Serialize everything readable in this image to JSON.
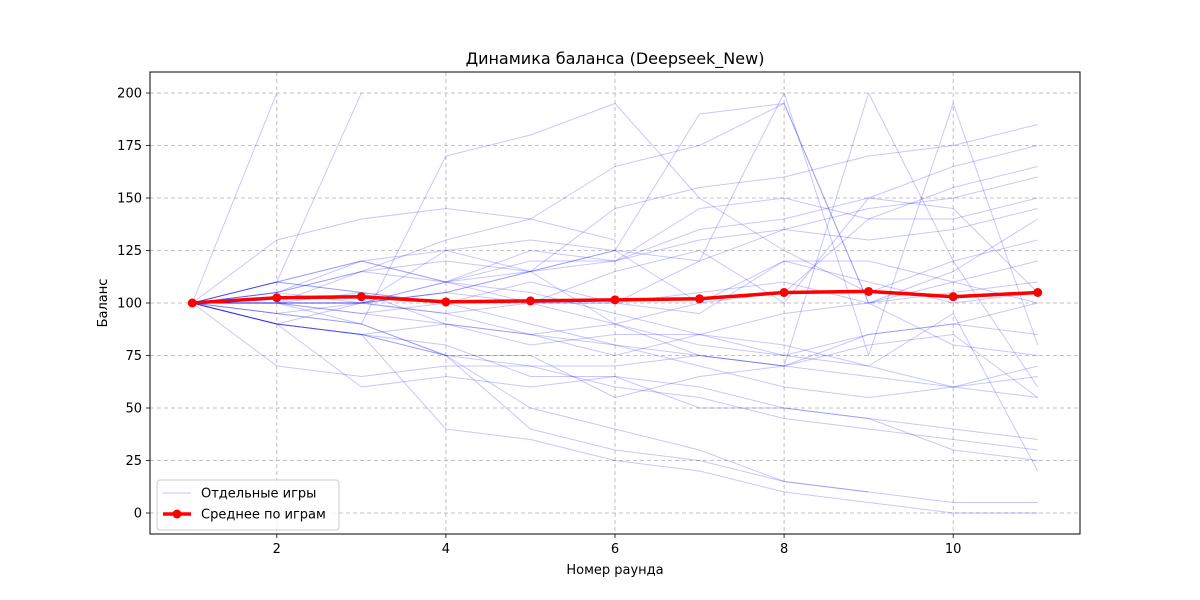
{
  "chart_data": {
    "type": "line",
    "title": "Динамика баланса (Deepseek_New)",
    "xlabel": "Номер раунда",
    "ylabel": "Баланс",
    "xlim": [
      0.5,
      11.5
    ],
    "ylim": [
      -10,
      210
    ],
    "xticks": [
      2,
      4,
      6,
      8,
      10
    ],
    "yticks": [
      0,
      25,
      50,
      75,
      100,
      125,
      150,
      175,
      200
    ],
    "grid": true,
    "legend_position": "lower-left",
    "legend": {
      "individual_label": "Отдельные игры",
      "mean_label": "Среднее по играм"
    },
    "colors": {
      "individual": "#0000ff",
      "mean": "#ff0000",
      "grid": "#b0b0b0"
    },
    "individual_series": [
      {
        "x": [
          1,
          2
        ],
        "y": [
          100,
          200
        ]
      },
      {
        "x": [
          1,
          2,
          3
        ],
        "y": [
          100,
          110,
          200
        ]
      },
      {
        "x": [
          1,
          2,
          3,
          4,
          5,
          6
        ],
        "y": [
          100,
          130,
          140,
          145,
          140,
          130
        ]
      },
      {
        "x": [
          1,
          2,
          3,
          4,
          5,
          6,
          7,
          8,
          9,
          10,
          11
        ],
        "y": [
          100,
          110,
          120,
          110,
          120,
          120,
          130,
          135,
          145,
          150,
          160
        ]
      },
      {
        "x": [
          1,
          2,
          3,
          4,
          5,
          6,
          7,
          8,
          9,
          10,
          11
        ],
        "y": [
          100,
          105,
          115,
          120,
          115,
          120,
          135,
          140,
          150,
          165,
          175
        ]
      },
      {
        "x": [
          1,
          2,
          3,
          4,
          5,
          6,
          7,
          8,
          9,
          10,
          11
        ],
        "y": [
          100,
          90,
          100,
          105,
          115,
          145,
          155,
          160,
          170,
          175,
          185
        ]
      },
      {
        "x": [
          1,
          2,
          3,
          4,
          5,
          6,
          7,
          8,
          9,
          10,
          11
        ],
        "y": [
          100,
          105,
          100,
          105,
          100,
          100,
          120,
          135,
          130,
          135,
          145
        ]
      },
      {
        "x": [
          1,
          2,
          3,
          4,
          5,
          6,
          7,
          8,
          9,
          10,
          11
        ],
        "y": [
          100,
          110,
          105,
          90,
          85,
          90,
          100,
          120,
          120,
          110,
          100
        ]
      },
      {
        "x": [
          1,
          2,
          3,
          4,
          5,
          6,
          7,
          8,
          9,
          10,
          11
        ],
        "y": [
          100,
          90,
          85,
          90,
          85,
          75,
          85,
          75,
          85,
          90,
          100
        ]
      },
      {
        "x": [
          1,
          2,
          3,
          4,
          5,
          6,
          7,
          8,
          9,
          10,
          11
        ],
        "y": [
          100,
          90,
          85,
          75,
          70,
          60,
          55,
          45,
          40,
          35,
          30
        ]
      },
      {
        "x": [
          1,
          2,
          3,
          4,
          5,
          6,
          7,
          8,
          9,
          10,
          11
        ],
        "y": [
          100,
          105,
          115,
          110,
          105,
          95,
          85,
          80,
          70,
          60,
          55
        ]
      },
      {
        "x": [
          1,
          2,
          3,
          4,
          5,
          6,
          7,
          8,
          9,
          10,
          11
        ],
        "y": [
          100,
          110,
          120,
          110,
          100,
          90,
          75,
          70,
          85,
          90,
          85
        ]
      },
      {
        "x": [
          1,
          2,
          3,
          4,
          5,
          6,
          7,
          8,
          9,
          10,
          11
        ],
        "y": [
          100,
          95,
          100,
          95,
          100,
          100,
          105,
          110,
          100,
          110,
          120
        ]
      },
      {
        "x": [
          1,
          2,
          3,
          4,
          5,
          6,
          7,
          8,
          9,
          10,
          11
        ],
        "y": [
          100,
          100,
          95,
          90,
          80,
          85,
          85,
          95,
          100,
          105,
          110
        ]
      },
      {
        "x": [
          1,
          2,
          3,
          4,
          5,
          6,
          7,
          8,
          9,
          10,
          11
        ],
        "y": [
          100,
          100,
          105,
          100,
          90,
          80,
          70,
          60,
          55,
          60,
          70
        ]
      },
      {
        "x": [
          1,
          2,
          3,
          4,
          5,
          6,
          7,
          8,
          9,
          10,
          11
        ],
        "y": [
          100,
          90,
          85,
          75,
          75,
          55,
          65,
          70,
          80,
          85,
          55
        ]
      },
      {
        "x": [
          1,
          2,
          3,
          4,
          5,
          6,
          7,
          8,
          9,
          10,
          11
        ],
        "y": [
          100,
          70,
          65,
          70,
          70,
          70,
          75,
          70,
          65,
          60,
          65
        ]
      },
      {
        "x": [
          1,
          2,
          3,
          4,
          5,
          6,
          7,
          8,
          9,
          10,
          11
        ],
        "y": [
          100,
          90,
          60,
          65,
          60,
          65,
          60,
          50,
          45,
          30,
          25
        ]
      },
      {
        "x": [
          1,
          2,
          3,
          4,
          5,
          6,
          7,
          8,
          9,
          10,
          11
        ],
        "y": [
          100,
          90,
          85,
          40,
          35,
          25,
          20,
          10,
          5,
          0,
          0
        ]
      },
      {
        "x": [
          1,
          2,
          3,
          4,
          5,
          6,
          7,
          8,
          9,
          10,
          11
        ],
        "y": [
          100,
          95,
          90,
          75,
          40,
          30,
          25,
          15,
          10,
          5,
          5
        ]
      },
      {
        "x": [
          1,
          2,
          3,
          4,
          5,
          6,
          7,
          8,
          9
        ],
        "y": [
          100,
          100,
          90,
          75,
          50,
          40,
          30,
          15,
          10
        ]
      },
      {
        "x": [
          1,
          2,
          3,
          4,
          5,
          6,
          7,
          8,
          9,
          10,
          11
        ],
        "y": [
          100,
          90,
          85,
          80,
          65,
          65,
          50,
          50,
          45,
          40,
          35
        ]
      },
      {
        "x": [
          1,
          2,
          3,
          4,
          5,
          6,
          7,
          8,
          9,
          10,
          11
        ],
        "y": [
          100,
          105,
          120,
          125,
          130,
          125,
          100,
          105,
          140,
          155,
          165
        ]
      },
      {
        "x": [
          1,
          2,
          3,
          4,
          5,
          6,
          7,
          8,
          9,
          10,
          11
        ],
        "y": [
          100,
          95,
          90,
          170,
          180,
          195,
          150,
          125,
          105,
          120,
          130
        ]
      },
      {
        "x": [
          1,
          2,
          3,
          4,
          5,
          6,
          7,
          8,
          9,
          10,
          11
        ],
        "y": [
          100,
          100,
          115,
          130,
          140,
          165,
          175,
          195,
          100,
          115,
          140
        ]
      },
      {
        "x": [
          1,
          2,
          3,
          4,
          5,
          6,
          7,
          8,
          9,
          10,
          11
        ],
        "y": [
          100,
          100,
          100,
          110,
          115,
          125,
          190,
          195,
          100,
          80,
          75
        ]
      },
      {
        "x": [
          1,
          2,
          3,
          4,
          5,
          6,
          7,
          8,
          9,
          10,
          11
        ],
        "y": [
          100,
          100,
          100,
          105,
          115,
          125,
          120,
          200,
          75,
          195,
          80
        ]
      },
      {
        "x": [
          1,
          2,
          3,
          4,
          5,
          6,
          7,
          8,
          9,
          10,
          11
        ],
        "y": [
          100,
          100,
          100,
          110,
          125,
          120,
          145,
          150,
          140,
          140,
          150
        ]
      },
      {
        "x": [
          1,
          2,
          3,
          4,
          5,
          6,
          7,
          8,
          9,
          10,
          11
        ],
        "y": [
          100,
          110,
          105,
          100,
          100,
          115,
          125,
          100,
          150,
          145,
          105
        ]
      },
      {
        "x": [
          1,
          2,
          3,
          4,
          5,
          6,
          7,
          8,
          9,
          10,
          11
        ],
        "y": [
          100,
          100,
          100,
          95,
          85,
          80,
          75,
          70,
          200,
          120,
          60
        ]
      },
      {
        "x": [
          1,
          2,
          3,
          4,
          5,
          6,
          7,
          8,
          9,
          10,
          11
        ],
        "y": [
          100,
          100,
          95,
          100,
          110,
          100,
          95,
          120,
          110,
          100,
          105
        ]
      },
      {
        "x": [
          1,
          2,
          3,
          4,
          5,
          6,
          7,
          8,
          9,
          10,
          11
        ],
        "y": [
          100,
          100,
          100,
          125,
          115,
          90,
          80,
          75,
          70,
          95,
          20
        ]
      }
    ],
    "mean_series": {
      "x": [
        1,
        2,
        3,
        4,
        5,
        6,
        7,
        8,
        9,
        10,
        11
      ],
      "y": [
        100,
        102.5,
        103,
        100.5,
        101,
        101.5,
        102,
        105,
        105.5,
        103,
        105
      ]
    }
  }
}
